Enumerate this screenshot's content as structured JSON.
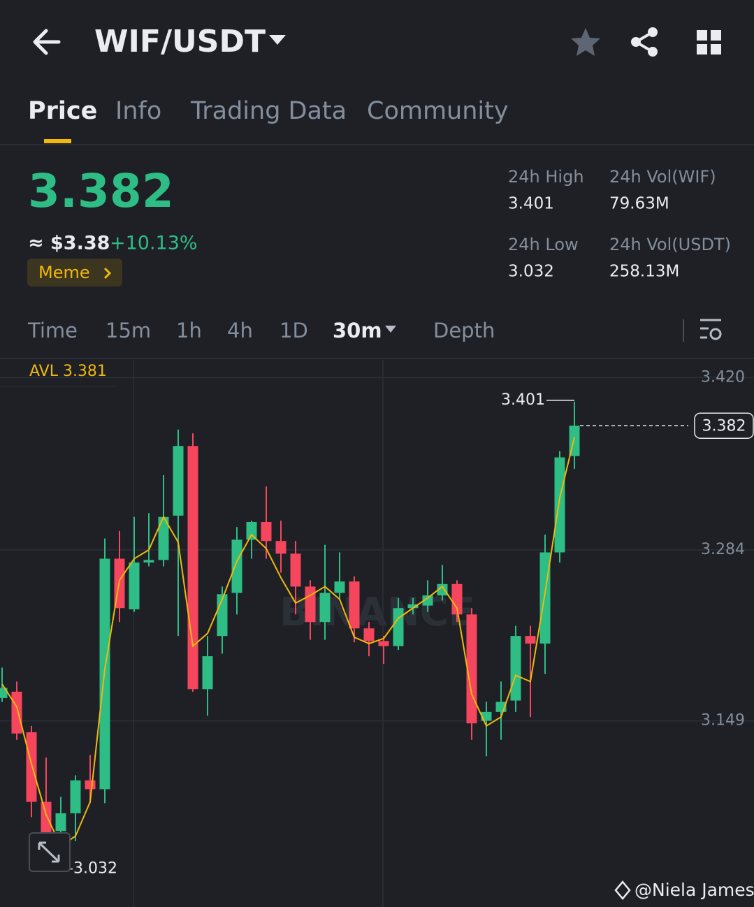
{
  "header": {
    "title": "WIF/USDT"
  },
  "tabs": [
    "Price",
    "Info",
    "Trading Data",
    "Community"
  ],
  "price": {
    "last": "3.382",
    "usd": "≈ $3.38",
    "change": "+10.13%",
    "tag": "Meme"
  },
  "stats": [
    {
      "label": "24h High",
      "value": "3.401"
    },
    {
      "label": "24h Vol(WIF)",
      "value": "79.63M"
    },
    {
      "label": "24h Low",
      "value": "3.032"
    },
    {
      "label": "24h Vol(USDT)",
      "value": "258.13M"
    }
  ],
  "intervals": [
    "Time",
    "15m",
    "1h",
    "4h",
    "1D",
    "30m",
    "Depth"
  ],
  "chart_data": {
    "type": "candlestick",
    "ma_label": "AVL 3.381",
    "up_color": "#2ebd85",
    "down_color": "#f6465d",
    "ma_color": "#f0b90b",
    "ylim": [
      3.002,
      3.434
    ],
    "yticks": [
      {
        "value": 3.42,
        "label": "3.420"
      },
      3.284,
      3.149
    ],
    "grid": true,
    "open": [
      3.167,
      3.172,
      3.14,
      3.085,
      3.062,
      3.076,
      3.102,
      3.095,
      3.277,
      3.237,
      3.274,
      3.276,
      3.311,
      3.366,
      3.174,
      3.216,
      3.25,
      3.292,
      3.306,
      3.291,
      3.281,
      3.255,
      3.227,
      3.25,
      3.259,
      3.222,
      3.212,
      3.208,
      3.238,
      3.24,
      3.248,
      3.257,
      3.233,
      3.149,
      3.156,
      3.165,
      3.216,
      3.21,
      3.282,
      3.358
    ],
    "high": [
      3.191,
      3.18,
      3.145,
      3.12,
      3.089,
      3.106,
      3.122,
      3.293,
      3.299,
      3.31,
      3.313,
      3.343,
      3.379,
      3.376,
      3.216,
      3.255,
      3.302,
      3.307,
      3.334,
      3.307,
      3.291,
      3.26,
      3.288,
      3.282,
      3.263,
      3.227,
      3.216,
      3.246,
      3.246,
      3.26,
      3.272,
      3.26,
      3.238,
      3.164,
      3.18,
      3.224,
      3.224,
      3.296,
      3.362,
      3.401
    ],
    "low": [
      3.164,
      3.134,
      3.073,
      3.032,
      3.056,
      3.054,
      3.084,
      3.084,
      3.227,
      3.235,
      3.271,
      3.271,
      3.216,
      3.172,
      3.153,
      3.202,
      3.233,
      3.277,
      3.277,
      3.266,
      3.233,
      3.213,
      3.213,
      3.244,
      3.211,
      3.2,
      3.194,
      3.205,
      3.233,
      3.235,
      3.244,
      3.227,
      3.134,
      3.121,
      3.134,
      3.156,
      3.152,
      3.186,
      3.274,
      3.348
    ],
    "close": [
      3.175,
      3.139,
      3.085,
      3.035,
      3.076,
      3.102,
      3.095,
      3.277,
      3.238,
      3.274,
      3.276,
      3.31,
      3.366,
      3.174,
      3.2,
      3.249,
      3.292,
      3.306,
      3.291,
      3.281,
      3.255,
      3.227,
      3.25,
      3.259,
      3.222,
      3.212,
      3.208,
      3.238,
      3.241,
      3.248,
      3.257,
      3.233,
      3.147,
      3.156,
      3.164,
      3.216,
      3.21,
      3.282,
      3.357,
      3.382
    ],
    "ma": [
      3.178,
      3.16,
      3.115,
      3.075,
      3.05,
      3.058,
      3.085,
      3.19,
      3.26,
      3.277,
      3.284,
      3.31,
      3.29,
      3.208,
      3.218,
      3.245,
      3.275,
      3.296,
      3.285,
      3.262,
      3.242,
      3.248,
      3.255,
      3.245,
      3.215,
      3.21,
      3.214,
      3.23,
      3.238,
      3.246,
      3.255,
      3.238,
      3.17,
      3.145,
      3.152,
      3.185,
      3.18,
      3.25,
      3.325,
      3.373
    ]
  },
  "watermark": "@Niela James"
}
